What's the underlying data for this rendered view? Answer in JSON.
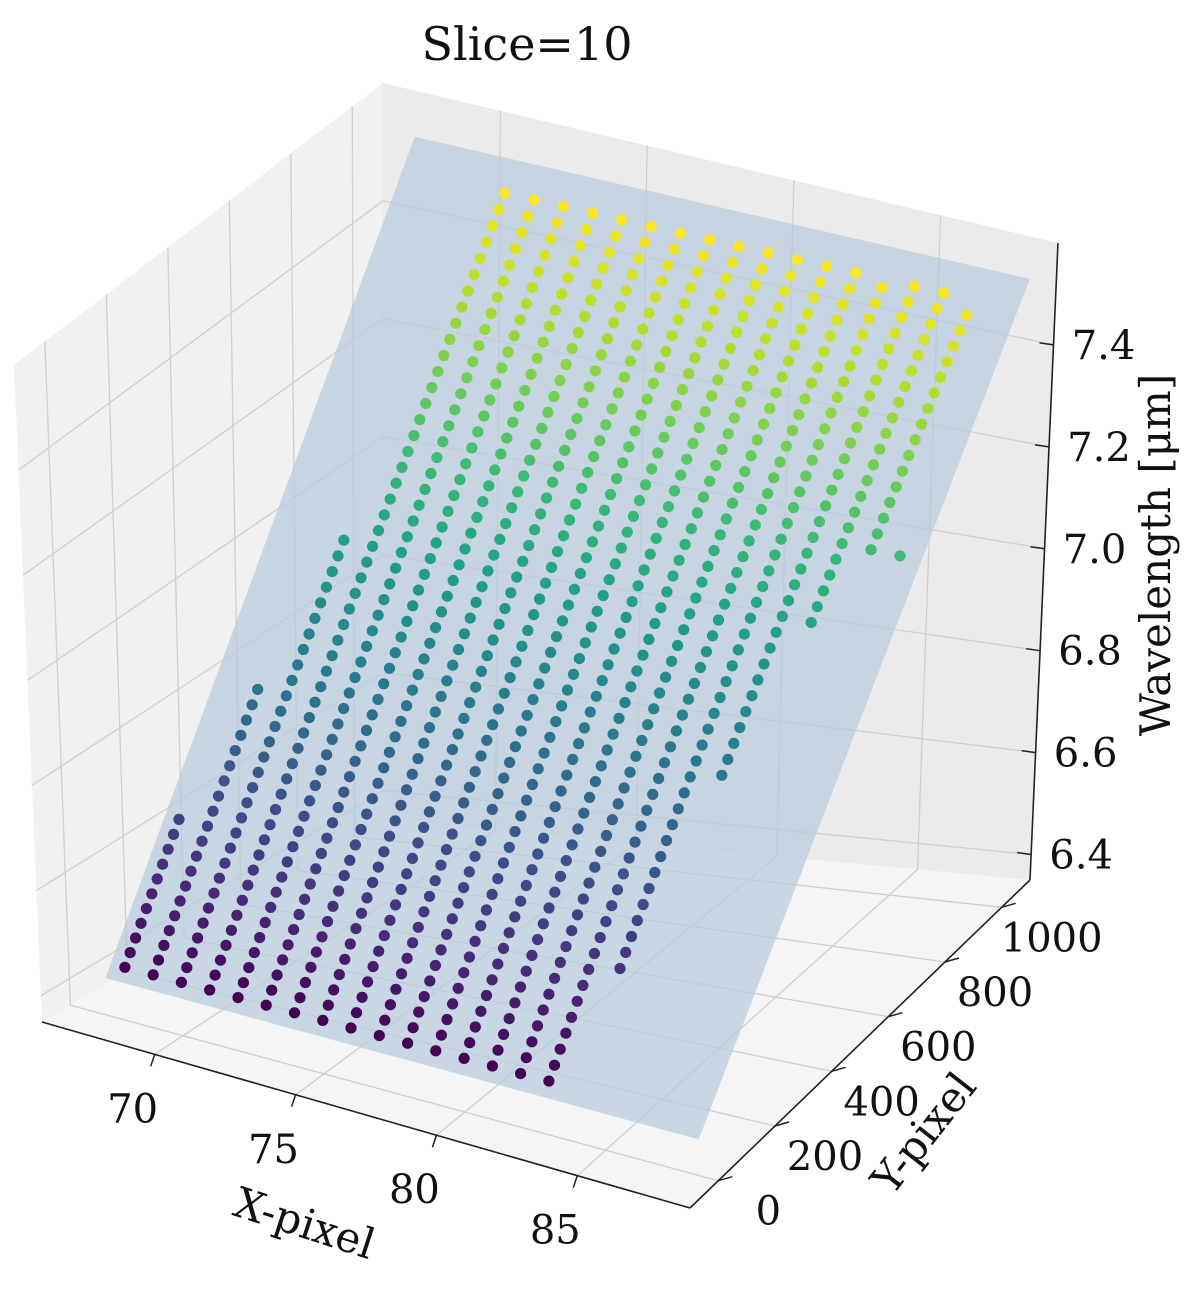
{
  "chart_data": {
    "type": "scatter3d",
    "title": "Slice=10",
    "xlabel": "X-pixel",
    "ylabel": "Y-pixel",
    "zlabel": "Wavelength [μm]",
    "x_ticks": [
      "70",
      "75",
      "80",
      "85"
    ],
    "y_ticks": [
      "0",
      "200",
      "400",
      "600",
      "800",
      "1000"
    ],
    "z_ticks": [
      "6.4",
      "6.6",
      "6.8",
      "7.0",
      "7.2",
      "7.4"
    ],
    "x_range": [
      66,
      89
    ],
    "y_range": [
      -100,
      1100
    ],
    "z_range": [
      6.35,
      7.6
    ],
    "colormap": "viridis",
    "surface_color": "#b8cbdc",
    "plane": {
      "z_at_y0": 6.45,
      "z_slope_per_ypix": 0.00103
    },
    "columns": [
      {
        "x": 68,
        "y_min": 0,
        "y_max": 200
      },
      {
        "x": 69,
        "y_min": 0,
        "y_max": 380
      },
      {
        "x": 70,
        "y_min": 0,
        "y_max": 580
      },
      {
        "x": 71,
        "y_min": 0,
        "y_max": 1023
      },
      {
        "x": 72,
        "y_min": 0,
        "y_max": 1023
      },
      {
        "x": 73,
        "y_min": 0,
        "y_max": 1023
      },
      {
        "x": 74,
        "y_min": 0,
        "y_max": 1023
      },
      {
        "x": 75,
        "y_min": 0,
        "y_max": 1023
      },
      {
        "x": 76,
        "y_min": 0,
        "y_max": 1023
      },
      {
        "x": 77,
        "y_min": 0,
        "y_max": 1023
      },
      {
        "x": 78,
        "y_min": 0,
        "y_max": 1023
      },
      {
        "x": 79,
        "y_min": 0,
        "y_max": 1023
      },
      {
        "x": 80,
        "y_min": 0,
        "y_max": 1023
      },
      {
        "x": 81,
        "y_min": 0,
        "y_max": 1023
      },
      {
        "x": 82,
        "y_min": 0,
        "y_max": 1023
      },
      {
        "x": 83,
        "y_min": 0,
        "y_max": 1023
      },
      {
        "x": 84,
        "y_min": 150,
        "y_max": 1023
      },
      {
        "x": 85,
        "y_min": 400,
        "y_max": 1023
      },
      {
        "x": 86,
        "y_min": 600,
        "y_max": 1023
      },
      {
        "x": 87,
        "y_min": 700,
        "y_max": 1000
      },
      {
        "x": 88,
        "y_min": 700,
        "y_max": 700
      }
    ],
    "y_step": 20,
    "grid": true
  }
}
